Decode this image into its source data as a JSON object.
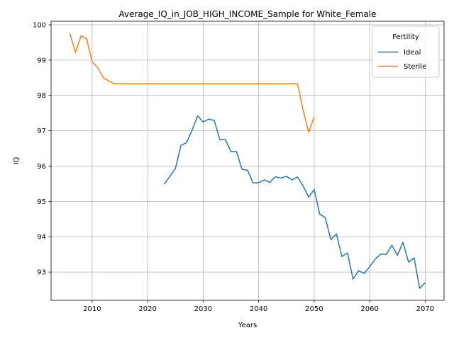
{
  "chart_data": {
    "type": "line",
    "title": "Average_IQ_in_JOB_HIGH_INCOME_Sample for White_Female",
    "xlabel": "Years",
    "ylabel": "IQ",
    "xlim": [
      2002.6,
      2073.4
    ],
    "ylim": [
      92.2,
      100.1
    ],
    "xticks": [
      2010,
      2020,
      2030,
      2040,
      2050,
      2060,
      2070
    ],
    "yticks": [
      93,
      94,
      95,
      96,
      97,
      98,
      99,
      100
    ],
    "grid": true,
    "legend": {
      "title": "Fertility",
      "placement": "top-right"
    },
    "series": [
      {
        "name": "Ideal",
        "color": "#1f77b4",
        "x": [
          2023,
          2024,
          2025,
          2026,
          2027,
          2028,
          2029,
          2030,
          2031,
          2032,
          2033,
          2034,
          2035,
          2036,
          2037,
          2038,
          2039,
          2040,
          2041,
          2042,
          2043,
          2044,
          2045,
          2046,
          2047,
          2048,
          2049,
          2050,
          2051,
          2052,
          2053,
          2054,
          2055,
          2056,
          2057,
          2058,
          2059,
          2060,
          2061,
          2062,
          2063,
          2064,
          2065,
          2066,
          2067,
          2068,
          2069,
          2070
        ],
        "values": [
          95.49,
          95.71,
          95.93,
          96.59,
          96.66,
          97.02,
          97.42,
          97.25,
          97.33,
          97.29,
          96.75,
          96.75,
          96.41,
          96.41,
          95.91,
          95.88,
          95.52,
          95.53,
          95.61,
          95.54,
          95.7,
          95.66,
          95.71,
          95.61,
          95.69,
          95.44,
          95.12,
          95.34,
          94.64,
          94.54,
          93.92,
          94.08,
          93.44,
          93.54,
          92.8,
          93.04,
          92.96,
          93.15,
          93.37,
          93.51,
          93.5,
          93.76,
          93.48,
          93.84,
          93.28,
          93.4,
          92.54,
          92.7
        ]
      },
      {
        "name": "Sterile",
        "color": "#ff7f0e",
        "x": [
          2006,
          2007,
          2008,
          2009,
          2010,
          2011,
          2012,
          2013,
          2014,
          2015,
          2016,
          2017,
          2018,
          2019,
          2020,
          2021,
          2022,
          2023,
          2024,
          2025,
          2026,
          2027,
          2028,
          2029,
          2030,
          2031,
          2032,
          2033,
          2034,
          2035,
          2036,
          2037,
          2038,
          2039,
          2040,
          2041,
          2042,
          2043,
          2044,
          2045,
          2046,
          2047,
          2048,
          2049,
          2050
        ],
        "values": [
          99.76,
          99.21,
          99.69,
          99.61,
          98.95,
          98.79,
          98.5,
          98.41,
          98.33,
          98.33,
          98.33,
          98.33,
          98.33,
          98.33,
          98.33,
          98.33,
          98.33,
          98.33,
          98.33,
          98.33,
          98.33,
          98.33,
          98.33,
          98.33,
          98.33,
          98.33,
          98.33,
          98.33,
          98.33,
          98.33,
          98.33,
          98.33,
          98.33,
          98.33,
          98.33,
          98.33,
          98.33,
          98.33,
          98.33,
          98.33,
          98.33,
          98.33,
          97.59,
          96.96,
          97.39
        ]
      }
    ]
  }
}
